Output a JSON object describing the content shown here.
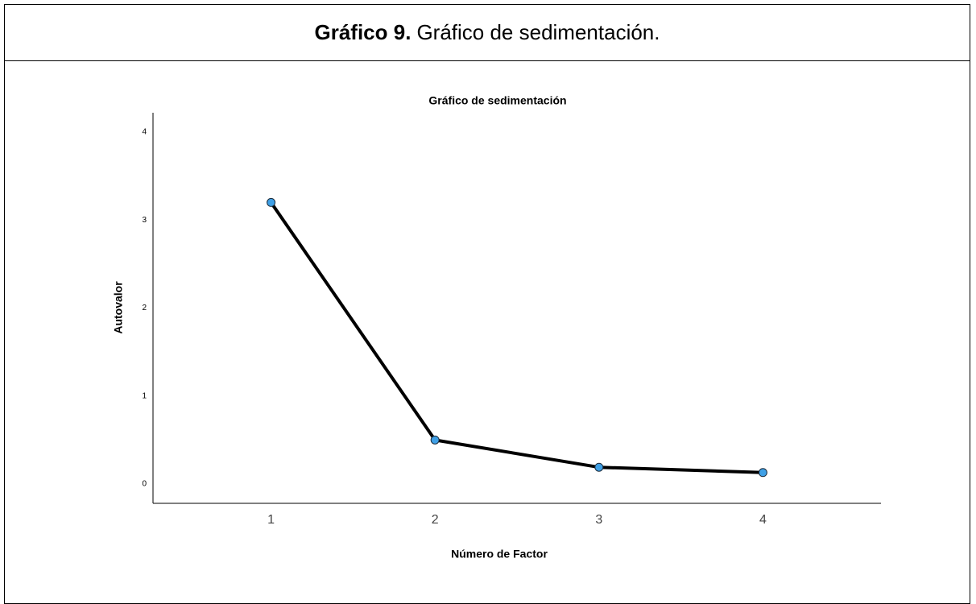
{
  "header": {
    "label": "Gráfico 9.",
    "caption": "Gráfico de sedimentación."
  },
  "chart_data": {
    "type": "line",
    "title": "Gráfico de sedimentación",
    "x_label": "Número de Factor",
    "y_label": "Autovalor",
    "x": [
      1,
      2,
      3,
      4
    ],
    "values": [
      3.2,
      0.5,
      0.19,
      0.13
    ],
    "color": "#000000",
    "marker_color": "#3fa0e6",
    "xlim": [
      0.28,
      4.72
    ],
    "xticks": [
      1,
      2,
      3,
      4
    ],
    "ylim": [
      -0.22,
      4.22
    ],
    "yticks": [
      0,
      1,
      2,
      3,
      4
    ],
    "grid": false
  }
}
